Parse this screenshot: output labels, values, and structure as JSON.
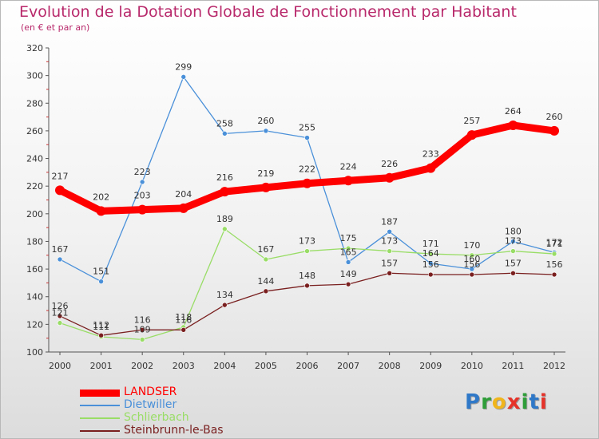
{
  "header": {
    "title": "Evolution de la Dotation Globale de Fonctionnement par Habitant",
    "subtitle": "(en € et par an)"
  },
  "logo": {
    "letters": [
      "P",
      "r",
      "o",
      "x",
      "i",
      "t",
      "i"
    ],
    "colors": [
      "#2f78c8",
      "#2f9e3a",
      "#f0b51c",
      "#e5332a",
      "#2f9e3a",
      "#2f78c8",
      "#e5332a"
    ]
  },
  "chart_data": {
    "type": "line",
    "title": "Evolution de la Dotation Globale de Fonctionnement par Habitant",
    "subtitle": "(en € et par an)",
    "xlabel": "",
    "ylabel": "",
    "x": [
      "2000",
      "2001",
      "2002",
      "2003",
      "2004",
      "2005",
      "2006",
      "2007",
      "2008",
      "2009",
      "2010",
      "2011",
      "2012"
    ],
    "ylim": [
      100,
      320
    ],
    "yticks": [
      100,
      120,
      140,
      160,
      180,
      200,
      220,
      240,
      260,
      280,
      300,
      320
    ],
    "grid": false,
    "legend_position": "bottom-left",
    "series": [
      {
        "name": "LANDSER",
        "color": "#ff0000",
        "values": [
          217,
          202,
          203,
          204,
          216,
          219,
          222,
          224,
          226,
          233,
          257,
          264,
          260
        ],
        "labels": [
          "217",
          "202",
          "203",
          "204",
          "216",
          "219",
          "222",
          "224",
          "226",
          "233",
          "257",
          "264",
          "260"
        ]
      },
      {
        "name": "Dietwiller",
        "color": "#4a90d9",
        "values": [
          167,
          151,
          223,
          299,
          258,
          260,
          255,
          165,
          187,
          164,
          160,
          180,
          172
        ],
        "labels": [
          "167",
          "151",
          "223",
          "299",
          "258",
          "260",
          "255",
          "165",
          "187",
          "164",
          "160",
          "180",
          "172"
        ]
      },
      {
        "name": "Schlierbach",
        "color": "#99dd66",
        "values": [
          121,
          111,
          109,
          118,
          189,
          167,
          173,
          175,
          173,
          171,
          170,
          173,
          171
        ],
        "labels": [
          "121",
          "111",
          "109",
          "118",
          "189",
          "167",
          "173",
          "175",
          "173",
          "171",
          "170",
          "173",
          "171"
        ]
      },
      {
        "name": "Steinbrunn-le-Bas",
        "color": "#7a1f1f",
        "values": [
          126,
          112,
          116,
          116,
          134,
          144,
          148,
          149,
          157,
          156,
          156,
          157,
          156
        ],
        "labels": [
          "126",
          "112",
          "116",
          "116",
          "134",
          "144",
          "148",
          "149",
          "157",
          "156",
          "156",
          "157",
          "156"
        ]
      }
    ]
  }
}
